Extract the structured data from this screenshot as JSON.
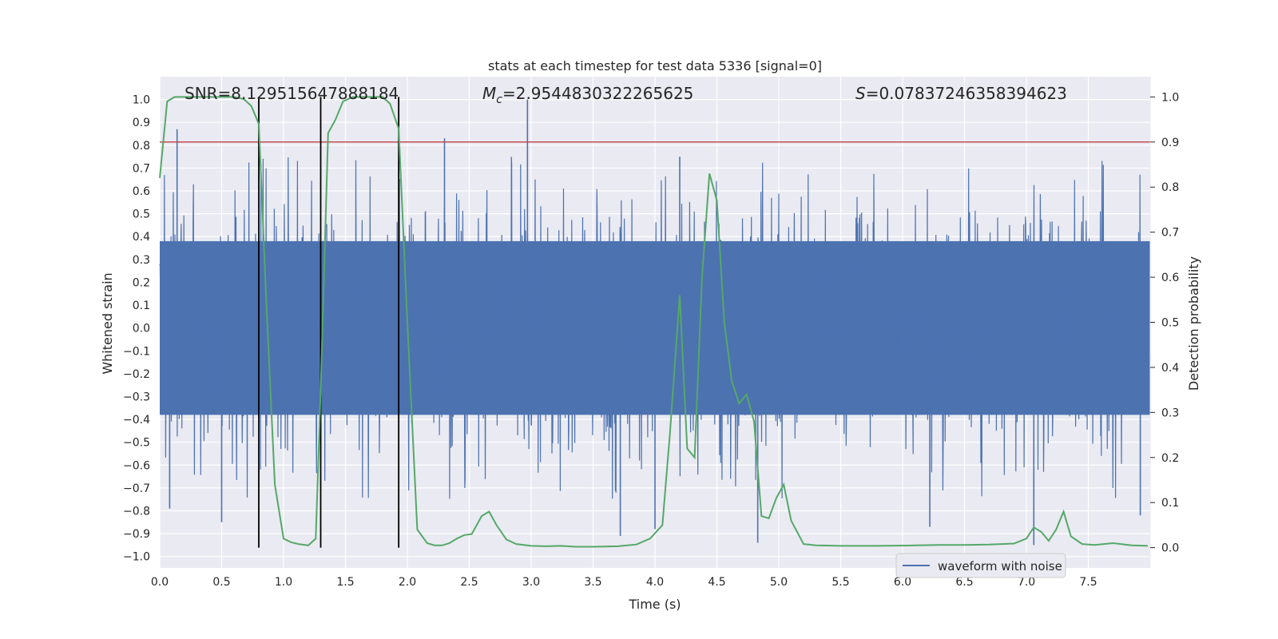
{
  "chart_data": {
    "type": "line",
    "title": "stats at each timestep for test data 5336 [signal=0]",
    "xlabel": "Time (s)",
    "ylabel_left": "Whitened strain",
    "ylabel_right": "Detection probability",
    "xlim": [
      0,
      8.0
    ],
    "ylim_left": [
      -1.05,
      1.1
    ],
    "ylim_right": [
      -0.045,
      1.045
    ],
    "x_ticks": [
      "0.0",
      "0.5",
      "1.0",
      "1.5",
      "2.0",
      "2.5",
      "3.0",
      "3.5",
      "4.0",
      "4.5",
      "5.0",
      "5.5",
      "6.0",
      "6.5",
      "7.0",
      "7.5"
    ],
    "y_left_ticks": [
      "-1.0",
      "-0.9",
      "-0.8",
      "-0.7",
      "-0.6",
      "-0.5",
      "-0.4",
      "-0.3",
      "-0.2",
      "-0.1",
      "0.0",
      "0.1",
      "0.2",
      "0.3",
      "0.4",
      "0.5",
      "0.6",
      "0.7",
      "0.8",
      "0.9",
      "1.0"
    ],
    "y_right_ticks": [
      "0.0",
      "0.1",
      "0.2",
      "0.3",
      "0.4",
      "0.5",
      "0.6",
      "0.7",
      "0.8",
      "0.9",
      "1.0"
    ],
    "grid": true,
    "legend_position": "bottom-right",
    "annotations": {
      "snr": "SNR=8.129515647888184",
      "mc_symbol": "M",
      "mc_sub": "c",
      "mc_value": "=2.9544830322265625",
      "s_symbol": "S",
      "s_value": "=0.07837246358394623"
    },
    "threshold": {
      "value": 0.9,
      "axis": "right",
      "color": "#c44e52"
    },
    "vertical_markers": {
      "x": [
        0.8,
        1.3,
        1.93
      ],
      "color": "#000000"
    },
    "series": [
      {
        "name": "waveform with noise",
        "axis": "left",
        "color": "#4c72b0",
        "description": "dense noise band",
        "band_core": 0.38,
        "notable_spikes": [
          [
            0.14,
            0.87
          ],
          [
            0.5,
            -0.85
          ],
          [
            0.08,
            -0.79
          ],
          [
            2.97,
            1.0
          ],
          [
            2.3,
            0.83
          ],
          [
            3.72,
            -0.91
          ],
          [
            4.83,
            -0.94
          ],
          [
            6.22,
            -0.87
          ],
          [
            7.06,
            -0.95
          ],
          [
            7.92,
            -0.82
          ],
          [
            4.2,
            0.75
          ],
          [
            4.0,
            -0.88
          ]
        ]
      },
      {
        "name": "detection probability",
        "axis": "right",
        "color": "#55a868",
        "x": [
          0.0,
          0.06,
          0.12,
          0.2,
          0.3,
          0.4,
          0.5,
          0.6,
          0.68,
          0.74,
          0.8,
          0.86,
          0.93,
          1.0,
          1.06,
          1.12,
          1.2,
          1.26,
          1.3,
          1.36,
          1.42,
          1.48,
          1.56,
          1.64,
          1.72,
          1.8,
          1.86,
          1.93,
          2.0,
          2.08,
          2.16,
          2.22,
          2.28,
          2.34,
          2.4,
          2.46,
          2.52,
          2.6,
          2.66,
          2.72,
          2.8,
          2.88,
          3.0,
          3.12,
          3.24,
          3.36,
          3.5,
          3.7,
          3.85,
          3.96,
          4.06,
          4.12,
          4.2,
          4.26,
          4.32,
          4.38,
          4.44,
          4.5,
          4.56,
          4.62,
          4.68,
          4.74,
          4.8,
          4.86,
          4.92,
          4.98,
          5.04,
          5.1,
          5.2,
          5.3,
          5.5,
          5.8,
          6.1,
          6.3,
          6.5,
          6.7,
          6.9,
          7.0,
          7.06,
          7.12,
          7.18,
          7.24,
          7.3,
          7.36,
          7.45,
          7.55,
          7.7,
          7.85,
          7.98
        ],
        "values": [
          0.82,
          0.99,
          1.0,
          1.0,
          1.0,
          1.0,
          1.0,
          1.0,
          0.995,
          0.98,
          0.94,
          0.55,
          0.14,
          0.02,
          0.012,
          0.008,
          0.005,
          0.02,
          0.35,
          0.92,
          0.95,
          0.99,
          1.0,
          1.0,
          1.0,
          1.0,
          0.985,
          0.93,
          0.5,
          0.04,
          0.01,
          0.005,
          0.005,
          0.01,
          0.02,
          0.028,
          0.03,
          0.07,
          0.08,
          0.05,
          0.018,
          0.008,
          0.004,
          0.003,
          0.004,
          0.002,
          0.002,
          0.003,
          0.007,
          0.02,
          0.05,
          0.25,
          0.56,
          0.22,
          0.2,
          0.6,
          0.83,
          0.77,
          0.5,
          0.37,
          0.32,
          0.34,
          0.28,
          0.07,
          0.065,
          0.11,
          0.14,
          0.06,
          0.008,
          0.005,
          0.004,
          0.004,
          0.005,
          0.006,
          0.006,
          0.007,
          0.009,
          0.02,
          0.045,
          0.035,
          0.015,
          0.04,
          0.08,
          0.025,
          0.008,
          0.006,
          0.01,
          0.005,
          0.004
        ]
      }
    ]
  }
}
